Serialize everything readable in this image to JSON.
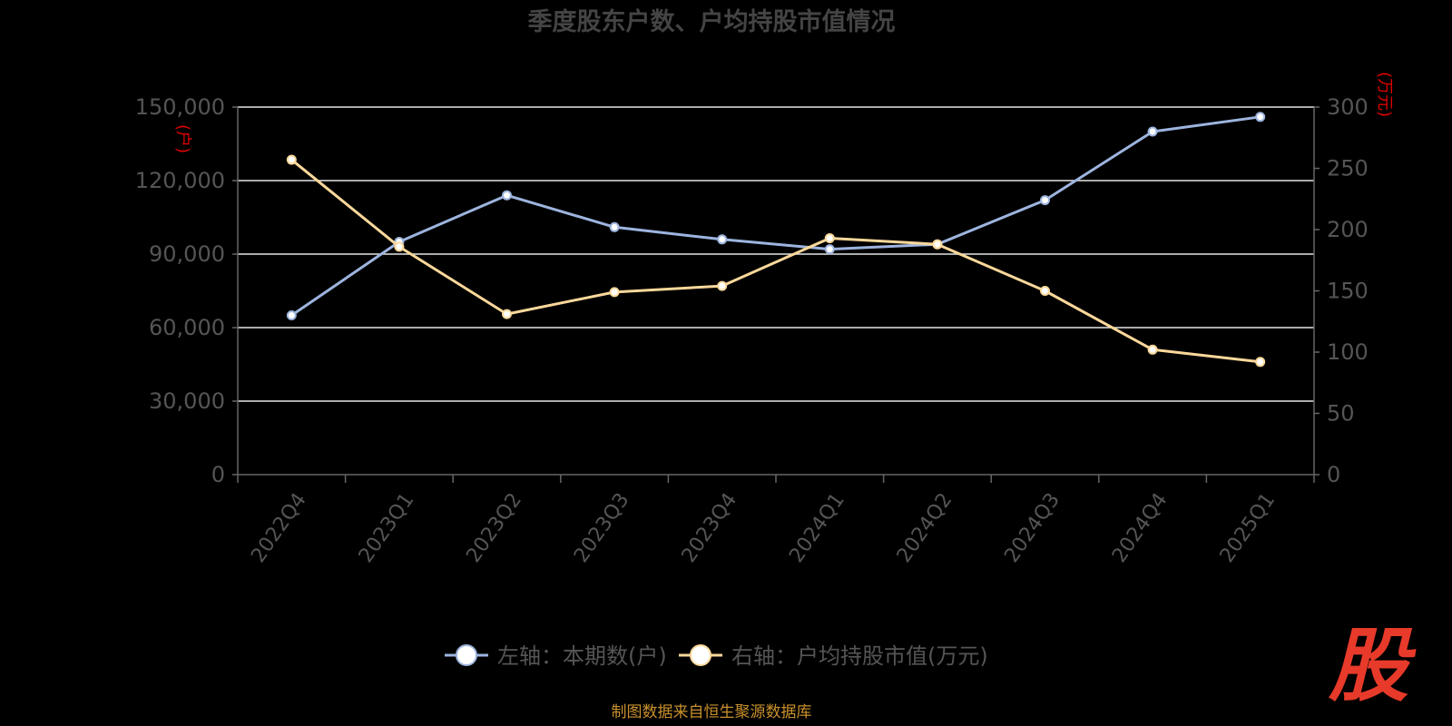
{
  "chart_data": {
    "type": "line",
    "title": "季度股东户数、户均持股市值情况",
    "categories": [
      "2022Q4",
      "2023Q1",
      "2023Q2",
      "2023Q3",
      "2023Q4",
      "2024Q1",
      "2024Q2",
      "2024Q3",
      "2024Q4",
      "2025Q1"
    ],
    "y_left": {
      "unit": "(户)",
      "ylim": [
        0,
        150000
      ],
      "ticks": [
        "0",
        "30,000",
        "60,000",
        "90,000",
        "120,000",
        "150,000"
      ]
    },
    "y_right": {
      "unit": "(万元)",
      "ylim": [
        0,
        300
      ],
      "ticks": [
        "0",
        "50",
        "100",
        "150",
        "200",
        "250",
        "300"
      ]
    },
    "series": [
      {
        "name": "左轴：本期数(户)",
        "axis": "left",
        "color": "#9db4de",
        "values": [
          65000,
          95000,
          114000,
          101000,
          96000,
          92000,
          94000,
          112000,
          140000,
          146000
        ]
      },
      {
        "name": "右轴：户均持股市值(万元)",
        "axis": "right",
        "color": "#fbd89a",
        "values": [
          257,
          186,
          131,
          149,
          154,
          193,
          188,
          150,
          102,
          92
        ]
      }
    ],
    "grid": true,
    "legend_position": "bottom-center"
  },
  "source_text": "制图数据来自恒生聚源数据库",
  "logo_text": "股"
}
